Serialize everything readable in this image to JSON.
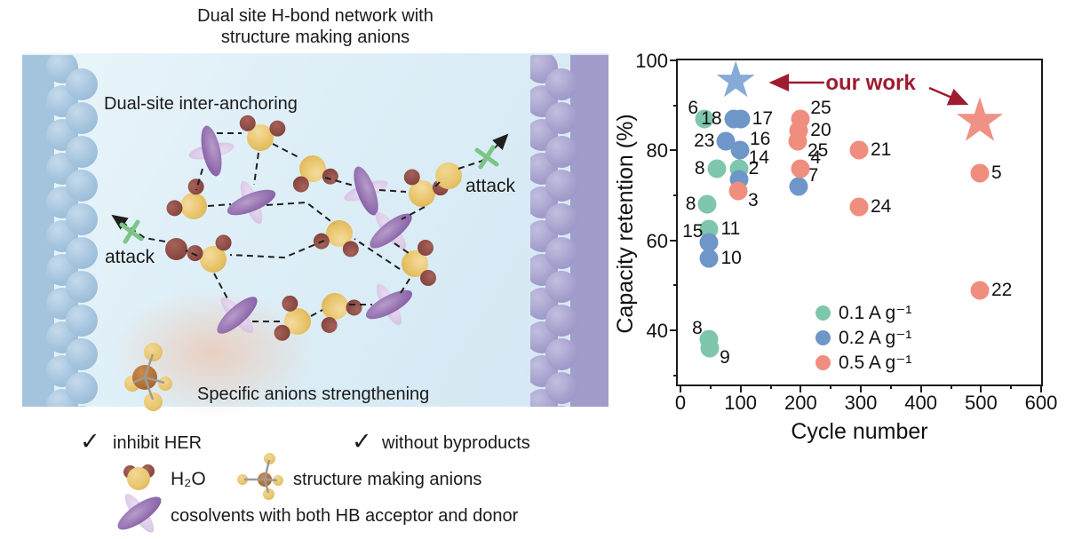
{
  "title": {
    "line1": "Dual site H-bond network with",
    "line2": "structure making anions"
  },
  "diagram": {
    "anchor_label": "Dual-site inter-anchoring",
    "strengthen_label": "Specific anions strengthening",
    "attack_left": "attack",
    "attack_right": "attack",
    "check_glyph": "✓",
    "checks": [
      {
        "label": "inhibit HER"
      },
      {
        "label": "without byproducts"
      }
    ],
    "icon_legend": [
      {
        "icon": "water-molecule",
        "label": "H₂O"
      },
      {
        "icon": "structure-making-anion",
        "label": "structure making anions"
      },
      {
        "icon": "cosolvent-molecule",
        "label": "cosolvents with both HB acceptor and donor"
      }
    ]
  },
  "chart_data": {
    "type": "scatter",
    "xlabel": "Cycle number",
    "ylabel": "Capacity retention (%)",
    "xlim": [
      0,
      600
    ],
    "ylim": [
      28,
      100
    ],
    "x_ticks": [
      0,
      100,
      200,
      300,
      400,
      500,
      600
    ],
    "x_minor_ticks": [
      50,
      150,
      250,
      350,
      450,
      550
    ],
    "y_ticks": [
      40,
      60,
      80,
      100
    ],
    "y_minor_ticks": [
      30,
      50,
      70,
      90
    ],
    "grid": false,
    "legend_position": "inside bottom-center",
    "legend": [
      {
        "label": "0.1 A g⁻¹",
        "color": "#7ec6ac"
      },
      {
        "label": "0.2 A g⁻¹",
        "color": "#6f96c8"
      },
      {
        "label": "0.5 A g⁻¹",
        "color": "#ef8e7f"
      }
    ],
    "series": [
      {
        "name": "0.1 A g⁻¹",
        "color": "#7ec6ac",
        "points": [
          {
            "label": "6",
            "x": 40,
            "y": 87,
            "side": "lu"
          },
          {
            "label": "8",
            "x": 60,
            "y": 76,
            "side": "l"
          },
          {
            "label": "14",
            "x": 97,
            "y": 76,
            "side": "ru"
          },
          {
            "label": "8",
            "x": 45,
            "y": 68,
            "side": "l"
          },
          {
            "label": "11",
            "x": 48,
            "y": 62.5,
            "side": "r"
          },
          {
            "label": "8",
            "x": 47,
            "y": 38,
            "side": "lu"
          },
          {
            "label": "9",
            "x": 49,
            "y": 36,
            "side": "rd"
          }
        ]
      },
      {
        "name": "0.2 A g⁻¹",
        "color": "#6f96c8",
        "points": [
          {
            "label": "18",
            "x": 88,
            "y": 87,
            "side": "l"
          },
          {
            "label": "17",
            "x": 100,
            "y": 87,
            "side": "r"
          },
          {
            "label": "23",
            "x": 76,
            "y": 82,
            "side": "l"
          },
          {
            "label": "16",
            "x": 99,
            "y": 80,
            "side": "ru"
          },
          {
            "label": "2",
            "x": 97,
            "y": 73.5,
            "side": "ru"
          },
          {
            "label": "15",
            "x": 48,
            "y": 59.5,
            "side": "lu"
          },
          {
            "label": "10",
            "x": 48,
            "y": 56,
            "side": "r"
          },
          {
            "label": "7",
            "x": 196,
            "y": 72,
            "side": "ru"
          }
        ]
      },
      {
        "name": "0.5 A g⁻¹",
        "color": "#ef8e7f",
        "points": [
          {
            "label": "3",
            "x": 96,
            "y": 71,
            "side": "rd"
          },
          {
            "label": "25",
            "x": 200,
            "y": 87,
            "side": "ru"
          },
          {
            "label": "20",
            "x": 197,
            "y": 84.5,
            "side": "r"
          },
          {
            "label": "25",
            "x": 195,
            "y": 82,
            "side": "rd"
          },
          {
            "label": "4",
            "x": 200,
            "y": 76,
            "side": "ru"
          },
          {
            "label": "21",
            "x": 297,
            "y": 80,
            "side": "r"
          },
          {
            "label": "24",
            "x": 297,
            "y": 67.5,
            "side": "r"
          },
          {
            "label": "5",
            "x": 498,
            "y": 75,
            "side": "r"
          },
          {
            "label": "22",
            "x": 498,
            "y": 49,
            "side": "r"
          }
        ]
      }
    ],
    "our_work": {
      "label": "our work",
      "color": "#9e1b30",
      "star_glyph": "★",
      "stars": [
        {
          "x": 92,
          "y": 95,
          "color": "#85abd6",
          "size": 56
        },
        {
          "x": 498,
          "y": 86,
          "color": "#ef9184",
          "size": 68
        }
      ]
    }
  }
}
